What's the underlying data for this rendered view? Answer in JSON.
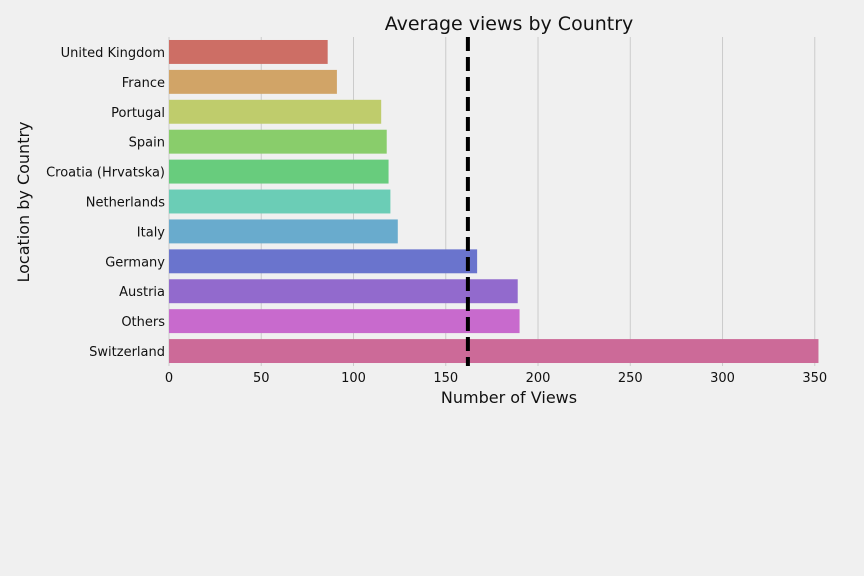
{
  "chart_data": {
    "type": "bar",
    "orientation": "horizontal",
    "title": "Average views by Country",
    "xlabel": "Number of Views",
    "ylabel": "Location by Country",
    "categories": [
      "United Kingdom",
      "France",
      "Portugal",
      "Spain",
      "Croatia (Hrvatska)",
      "Netherlands",
      "Italy",
      "Germany",
      "Austria",
      "Others",
      "Switzerland"
    ],
    "values": [
      86,
      91,
      115,
      118,
      119,
      120,
      124,
      167,
      189,
      190,
      352
    ],
    "colors": [
      "#cd6e65",
      "#d1a467",
      "#bfcc6c",
      "#89cd6b",
      "#68cc7d",
      "#6bcdb6",
      "#69abcd",
      "#6a74cd",
      "#926acd",
      "#c86acd",
      "#cc6a98"
    ],
    "xlim": [
      0,
      355
    ],
    "xticks": [
      0,
      50,
      100,
      150,
      200,
      250,
      300,
      350
    ],
    "reference_line": {
      "value": 162,
      "style": "dashed",
      "color": "#000000"
    },
    "grid": "x-axis vertical lines"
  }
}
